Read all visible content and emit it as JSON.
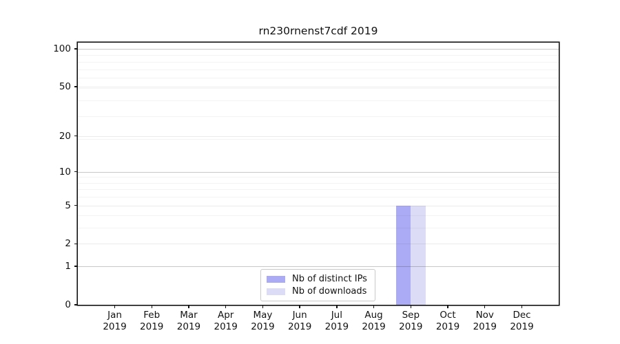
{
  "chart_data": {
    "type": "bar",
    "title": "rn230rnenst7cdf 2019",
    "months": [
      "Jan",
      "Feb",
      "Mar",
      "Apr",
      "May",
      "Jun",
      "Jul",
      "Aug",
      "Sep",
      "Oct",
      "Nov",
      "Dec"
    ],
    "year": "2019",
    "series": [
      {
        "name": "Nb of distinct IPs",
        "color": "#aaaaf5",
        "values": [
          0,
          0,
          0,
          0,
          0,
          0,
          0,
          0,
          5,
          0,
          0,
          0
        ]
      },
      {
        "name": "Nb of downloads",
        "color": "#dcdcf7",
        "values": [
          0,
          0,
          0,
          0,
          0,
          0,
          0,
          0,
          5,
          0,
          0,
          0
        ]
      }
    ],
    "y_axis": {
      "scale": "log1p",
      "ticks": [
        100,
        50,
        20,
        10,
        5,
        2,
        1,
        0
      ],
      "minor_ticks": [
        3,
        4,
        6,
        7,
        8,
        9,
        19,
        29,
        39,
        49,
        59,
        69,
        79,
        89
      ],
      "ylim": [
        0,
        112
      ]
    },
    "grid": true,
    "legend_position": "lower-center-inside"
  },
  "colors": {
    "bar_distinct_ips": "#aaaaf5",
    "bar_downloads": "#dcdcf7",
    "spine": "#111111",
    "decade_gridline": "#c6c6c6",
    "mid_gridline": "#e6e6e6",
    "minor_gridline": "#f1f1f1",
    "legend_border": "#c9c9c9",
    "text": "#111111"
  }
}
